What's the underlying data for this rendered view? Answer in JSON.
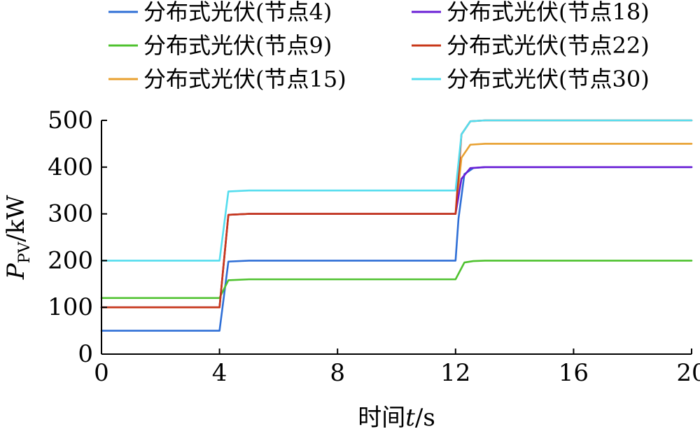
{
  "chart_data": {
    "type": "line",
    "xlabel_main": "时间",
    "xlabel_var": "t",
    "xlabel_unit": "/s",
    "ylabel_main": "P",
    "ylabel_sub": "PV",
    "ylabel_unit": "/kW",
    "xlim": [
      0,
      20
    ],
    "ylim": [
      0,
      500
    ],
    "xticks": [
      0,
      4,
      8,
      12,
      16,
      20
    ],
    "yticks": [
      0,
      100,
      200,
      300,
      400,
      500
    ],
    "xtick_labels": [
      "0",
      "4",
      "8",
      "12",
      "16",
      "20"
    ],
    "ytick_labels": [
      "0",
      "100",
      "200",
      "300",
      "400",
      "500"
    ],
    "grid": false,
    "legend_position": "top",
    "series": [
      {
        "name": "分布式光伏(节点4)",
        "color": "#2F6FD6",
        "x": [
          0,
          4,
          4.3,
          5,
          12,
          12.1,
          12.3,
          12.6,
          13,
          20
        ],
        "y": [
          50,
          50,
          198,
          200,
          200,
          290,
          385,
          398,
          400,
          400
        ]
      },
      {
        "name": "分布式光伏(节点9)",
        "color": "#4FC22F",
        "x": [
          0,
          4,
          4.3,
          5,
          12,
          12.3,
          12.6,
          13,
          20
        ],
        "y": [
          120,
          120,
          158,
          160,
          160,
          196,
          199,
          200,
          200
        ]
      },
      {
        "name": "分布式光伏(节点15)",
        "color": "#E8A030",
        "x": [
          0,
          4,
          4.3,
          5,
          12,
          12.2,
          12.5,
          13,
          20
        ],
        "y": [
          100,
          100,
          298,
          300,
          300,
          420,
          448,
          450,
          450
        ]
      },
      {
        "name": "分布式光伏(节点18)",
        "color": "#6A1FD6",
        "x": [
          0,
          4,
          4.3,
          5,
          12,
          12.2,
          12.5,
          13,
          20
        ],
        "y": [
          100,
          100,
          298,
          300,
          300,
          375,
          398,
          400,
          400
        ]
      },
      {
        "name": "分布式光伏(节点22)",
        "color": "#C8381A",
        "x": [
          0,
          4,
          4.3,
          5,
          12,
          12.2,
          12.5,
          13,
          20
        ],
        "y": [
          100,
          100,
          298,
          300,
          300,
          470,
          498,
          500,
          500
        ]
      },
      {
        "name": "分布式光伏(节点30)",
        "color": "#55DDEE",
        "x": [
          0,
          4,
          4.3,
          5,
          12,
          12.2,
          12.5,
          13,
          20
        ],
        "y": [
          200,
          200,
          348,
          350,
          350,
          470,
          498,
          500,
          500
        ]
      }
    ],
    "legend_order": [
      0,
      3,
      1,
      4,
      2,
      5
    ]
  }
}
